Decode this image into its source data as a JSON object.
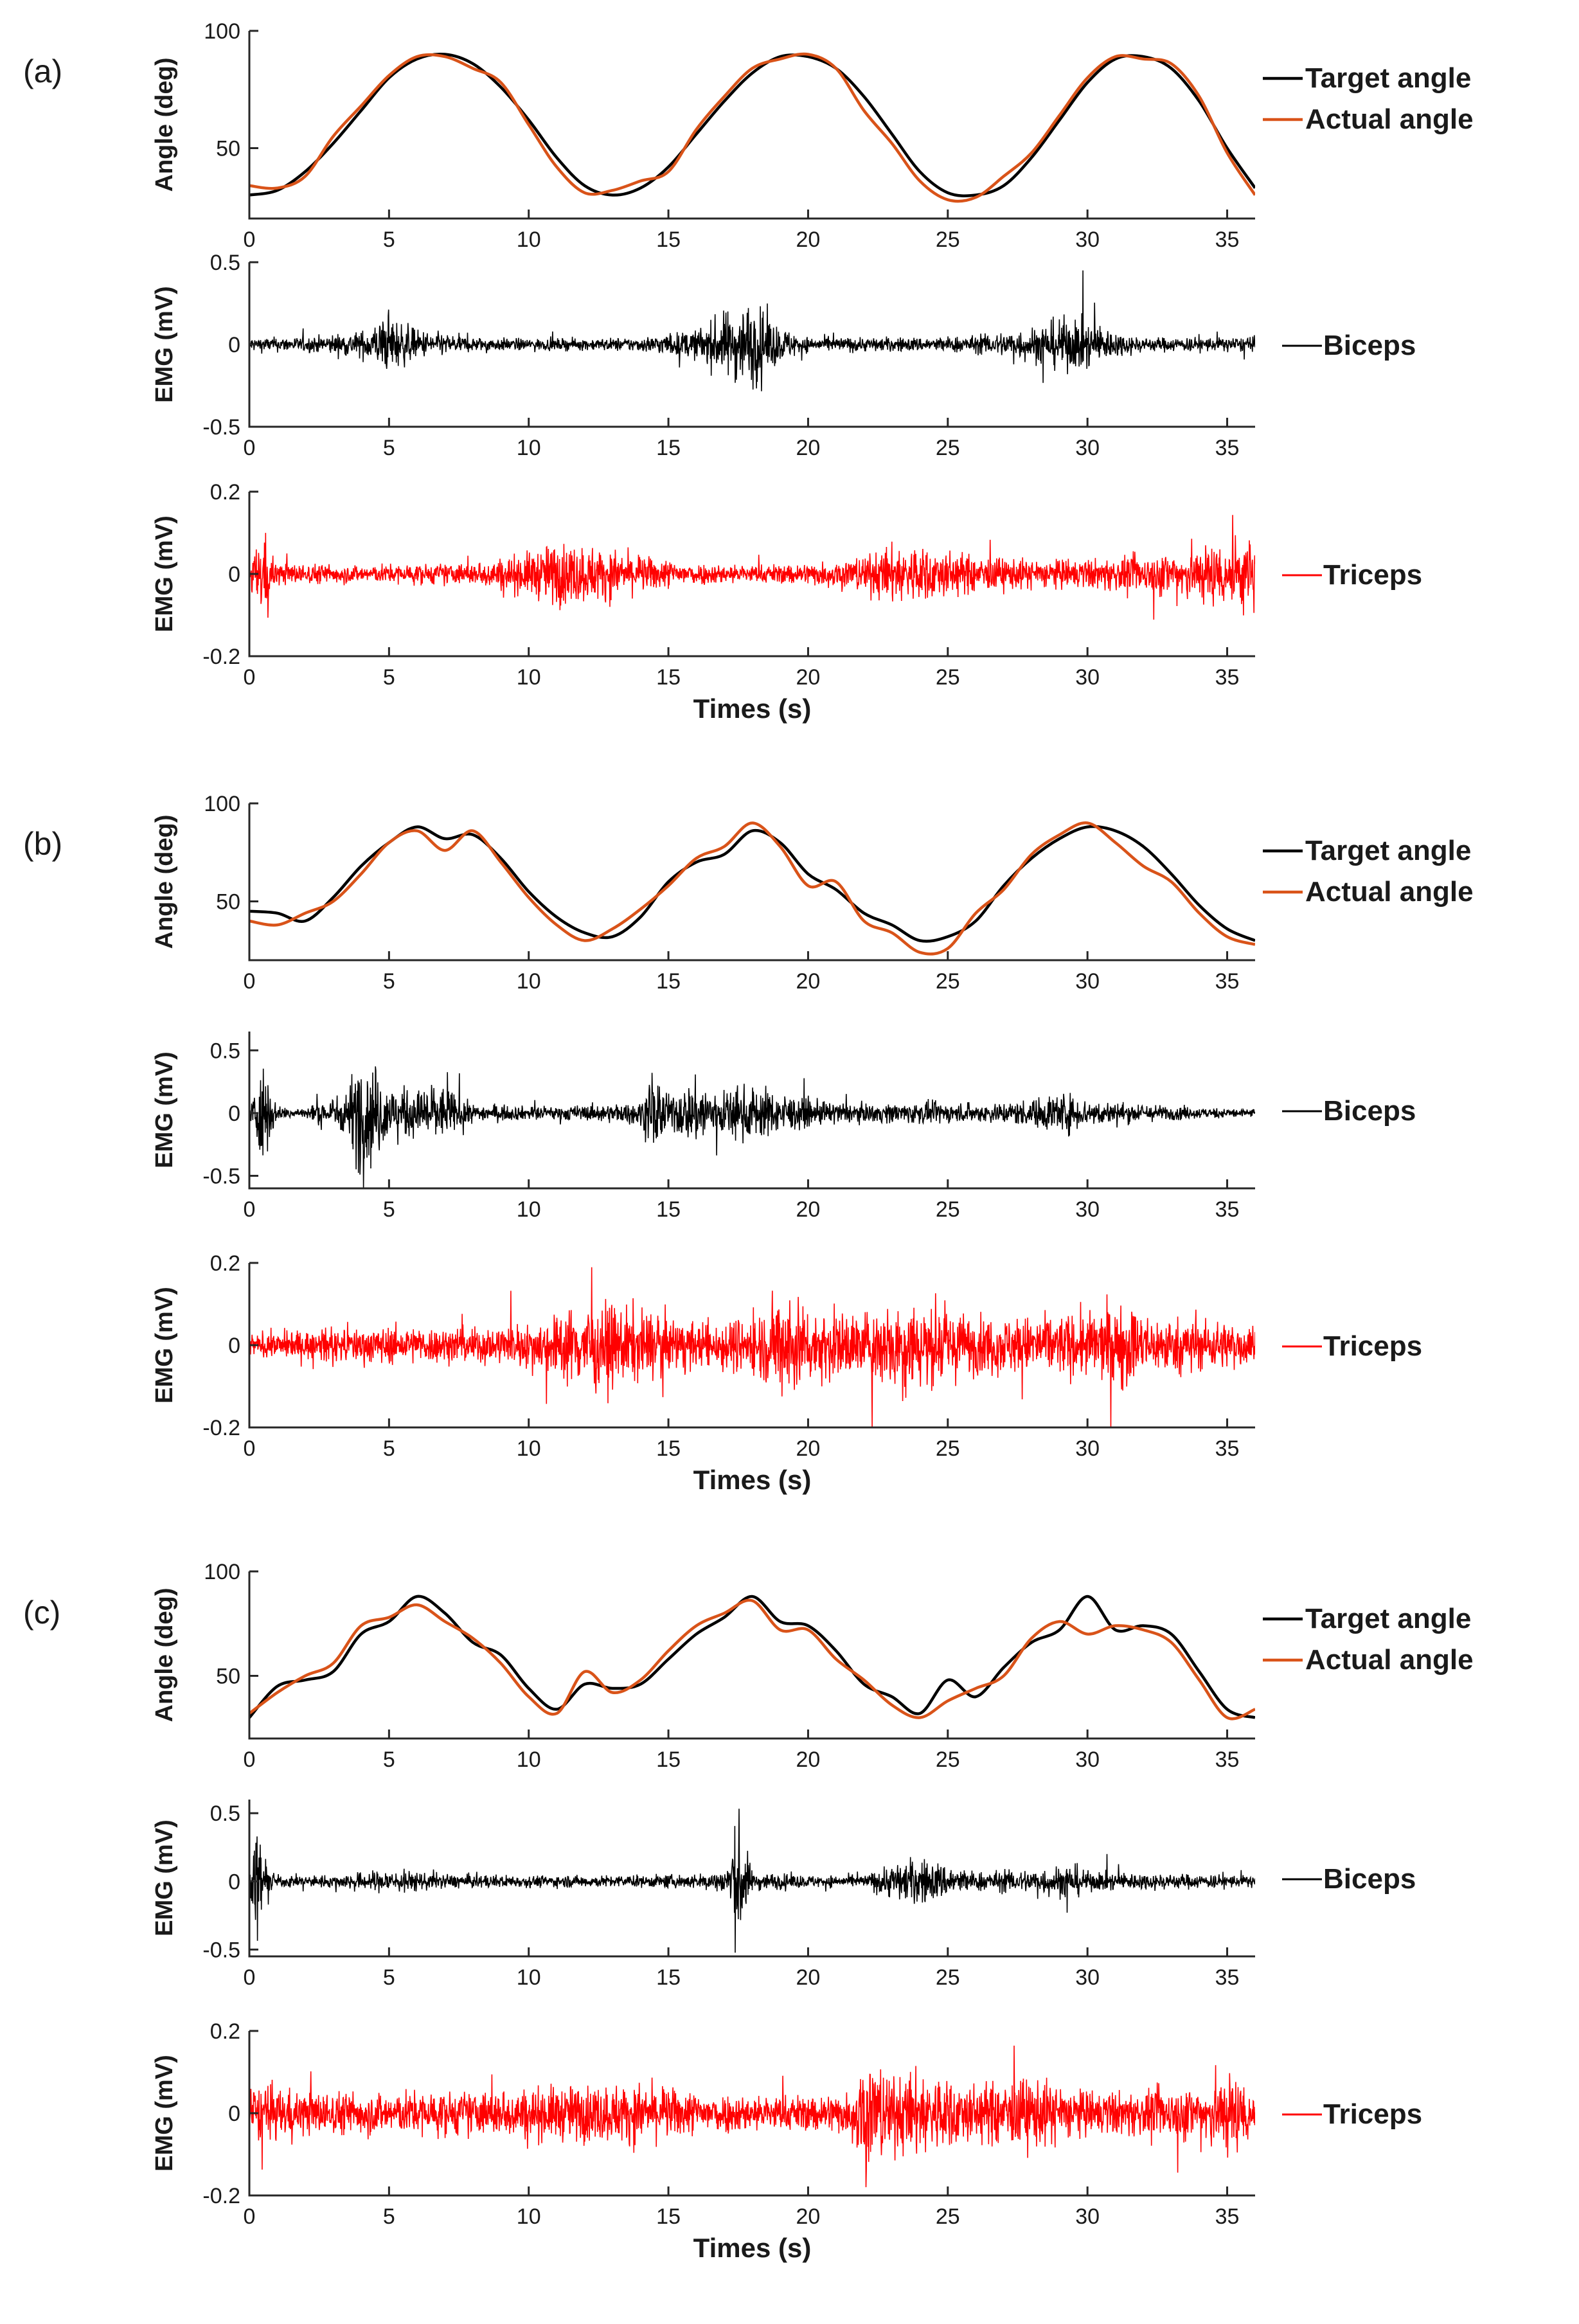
{
  "figure": {
    "xlabel": "Times (s)"
  },
  "chart_data": [
    {
      "type": "line",
      "panel": "(a)",
      "row": "angle",
      "ylabel": "Angle (deg)",
      "xlim": [
        0,
        36
      ],
      "ylim": [
        20,
        100
      ],
      "xticks": [
        0,
        5,
        10,
        15,
        20,
        25,
        30,
        35
      ],
      "yticks": [
        50,
        100
      ],
      "xlabel": "",
      "legend": [
        "Target angle",
        "Actual angle"
      ],
      "colors": [
        "#000000",
        "#d95319"
      ],
      "series": [
        {
          "name": "Target angle",
          "x": [
            0,
            1,
            2,
            3,
            4,
            5,
            6,
            7,
            8,
            9,
            10,
            11,
            12,
            13,
            14,
            15,
            16,
            17,
            18,
            19,
            20,
            21,
            22,
            23,
            24,
            25,
            26,
            27,
            28,
            29,
            30,
            31,
            32,
            33,
            34,
            35,
            36
          ],
          "values": [
            30,
            32,
            40,
            52,
            66,
            80,
            88,
            90,
            86,
            76,
            62,
            46,
            34,
            30,
            33,
            42,
            56,
            70,
            82,
            89,
            89,
            84,
            72,
            56,
            40,
            31,
            30,
            34,
            46,
            62,
            78,
            88,
            89,
            84,
            70,
            50,
            33
          ]
        },
        {
          "name": "Actual angle",
          "x": [
            0,
            1,
            2,
            3,
            4,
            5,
            6,
            7,
            8,
            9,
            10,
            11,
            12,
            13,
            14,
            15,
            16,
            17,
            18,
            19,
            20,
            21,
            22,
            23,
            24,
            25,
            26,
            27,
            28,
            29,
            30,
            31,
            32,
            33,
            34,
            35,
            36
          ],
          "values": [
            34,
            33,
            38,
            55,
            68,
            81,
            89,
            89,
            84,
            78,
            60,
            42,
            31,
            32,
            36,
            40,
            58,
            72,
            84,
            88,
            90,
            84,
            66,
            52,
            36,
            28,
            29,
            38,
            48,
            64,
            80,
            89,
            88,
            86,
            72,
            48,
            30
          ]
        }
      ]
    },
    {
      "type": "line",
      "panel": "(a)",
      "row": "biceps",
      "ylabel": "EMG (mV)",
      "xlim": [
        0,
        36
      ],
      "ylim": [
        -0.5,
        0.5
      ],
      "xticks": [
        0,
        5,
        10,
        15,
        20,
        25,
        30,
        35
      ],
      "yticks": [
        -0.5,
        0,
        0.5
      ],
      "legend": [
        "Biceps"
      ],
      "colors": [
        "#000000"
      ],
      "envelope_t": [
        0,
        2,
        4,
        5,
        6,
        8,
        10,
        12,
        14,
        16,
        17,
        18,
        19,
        20,
        22,
        24,
        26,
        28,
        29,
        30,
        31,
        32,
        34,
        36
      ],
      "envelope_amp": [
        0.05,
        0.05,
        0.09,
        0.2,
        0.1,
        0.05,
        0.04,
        0.04,
        0.05,
        0.1,
        0.22,
        0.3,
        0.12,
        0.05,
        0.05,
        0.05,
        0.06,
        0.12,
        0.18,
        0.17,
        0.09,
        0.05,
        0.05,
        0.05
      ]
    },
    {
      "type": "line",
      "panel": "(a)",
      "row": "triceps",
      "ylabel": "EMG (mV)",
      "xlim": [
        0,
        36
      ],
      "ylim": [
        -0.2,
        0.2
      ],
      "xticks": [
        0,
        5,
        10,
        15,
        20,
        25,
        30,
        35
      ],
      "yticks": [
        -0.2,
        0,
        0.2
      ],
      "xlabel": "Times (s)",
      "legend": [
        "Triceps"
      ],
      "colors": [
        "#ff0000"
      ],
      "envelope_t": [
        0,
        0.5,
        1,
        4,
        8,
        10,
        11,
        12,
        14,
        16,
        18,
        20,
        22,
        23,
        24,
        26,
        28,
        30,
        32,
        34,
        36
      ],
      "envelope_amp": [
        0.03,
        0.12,
        0.03,
        0.025,
        0.03,
        0.06,
        0.09,
        0.08,
        0.05,
        0.03,
        0.025,
        0.03,
        0.05,
        0.08,
        0.08,
        0.05,
        0.04,
        0.04,
        0.05,
        0.08,
        0.11
      ]
    },
    {
      "type": "line",
      "panel": "(b)",
      "row": "angle",
      "ylabel": "Angle (deg)",
      "xlim": [
        0,
        36
      ],
      "ylim": [
        20,
        100
      ],
      "xticks": [
        0,
        5,
        10,
        15,
        20,
        25,
        30,
        35
      ],
      "yticks": [
        50,
        100
      ],
      "xlabel": "",
      "legend": [
        "Target angle",
        "Actual angle"
      ],
      "colors": [
        "#000000",
        "#d95319"
      ],
      "series": [
        {
          "name": "Target angle",
          "x": [
            0,
            1,
            2,
            3,
            4,
            5,
            6,
            7,
            8,
            9,
            10,
            11,
            12,
            13,
            14,
            15,
            16,
            17,
            18,
            19,
            20,
            21,
            22,
            23,
            24,
            25,
            26,
            27,
            28,
            29,
            30,
            31,
            32,
            33,
            34,
            35,
            36
          ],
          "values": [
            45,
            44,
            40,
            52,
            68,
            80,
            88,
            82,
            84,
            72,
            55,
            42,
            34,
            32,
            42,
            60,
            70,
            74,
            86,
            80,
            64,
            56,
            44,
            38,
            30,
            32,
            40,
            58,
            72,
            82,
            88,
            86,
            78,
            64,
            48,
            36,
            30
          ]
        },
        {
          "name": "Actual angle",
          "x": [
            0,
            1,
            2,
            3,
            4,
            5,
            6,
            7,
            8,
            9,
            10,
            11,
            12,
            13,
            14,
            15,
            16,
            17,
            18,
            19,
            20,
            21,
            22,
            23,
            24,
            25,
            26,
            27,
            28,
            29,
            30,
            31,
            32,
            33,
            34,
            35,
            36
          ],
          "values": [
            40,
            38,
            44,
            50,
            64,
            80,
            86,
            76,
            86,
            70,
            52,
            38,
            30,
            36,
            46,
            58,
            72,
            78,
            90,
            78,
            58,
            60,
            40,
            34,
            24,
            26,
            44,
            56,
            74,
            84,
            90,
            80,
            68,
            60,
            44,
            32,
            28
          ]
        }
      ]
    },
    {
      "type": "line",
      "panel": "(b)",
      "row": "biceps",
      "ylabel": "EMG (mV)",
      "xlim": [
        0,
        36
      ],
      "ylim": [
        -0.6,
        0.65
      ],
      "xticks": [
        0,
        5,
        10,
        15,
        20,
        25,
        30,
        35
      ],
      "yticks": [
        -0.5,
        0,
        0.5
      ],
      "legend": [
        "Biceps"
      ],
      "colors": [
        "#000000"
      ],
      "envelope_t": [
        0,
        0.5,
        1,
        2,
        3.5,
        4,
        5,
        6,
        6.5,
        8,
        10,
        12,
        14,
        14.5,
        15,
        16,
        17,
        18,
        20,
        22,
        24,
        26,
        28,
        29,
        30,
        32,
        34,
        36
      ],
      "envelope_amp": [
        0.05,
        0.45,
        0.06,
        0.05,
        0.2,
        0.6,
        0.25,
        0.2,
        0.3,
        0.08,
        0.06,
        0.07,
        0.1,
        0.4,
        0.15,
        0.3,
        0.2,
        0.25,
        0.12,
        0.08,
        0.1,
        0.08,
        0.12,
        0.2,
        0.12,
        0.08,
        0.05,
        0.04
      ]
    },
    {
      "type": "line",
      "panel": "(b)",
      "row": "triceps",
      "ylabel": "EMG (mV)",
      "xlim": [
        0,
        36
      ],
      "ylim": [
        -0.2,
        0.2
      ],
      "xticks": [
        0,
        5,
        10,
        15,
        20,
        25,
        30,
        35
      ],
      "yticks": [
        -0.2,
        0,
        0.2
      ],
      "xlabel": "Times (s)",
      "legend": [
        "Triceps"
      ],
      "colors": [
        "#ff0000"
      ],
      "envelope_t": [
        0,
        2,
        4,
        6,
        8,
        10,
        12,
        14,
        16,
        18,
        19.5,
        20,
        22,
        23.5,
        24,
        26,
        28,
        30,
        31.5,
        32,
        34,
        36
      ],
      "envelope_amp": [
        0.03,
        0.04,
        0.05,
        0.05,
        0.05,
        0.06,
        0.12,
        0.1,
        0.06,
        0.08,
        0.16,
        0.1,
        0.09,
        0.14,
        0.12,
        0.08,
        0.08,
        0.09,
        0.12,
        0.08,
        0.07,
        0.06
      ]
    },
    {
      "type": "line",
      "panel": "(c)",
      "row": "angle",
      "ylabel": "Angle (deg)",
      "xlim": [
        0,
        36
      ],
      "ylim": [
        20,
        100
      ],
      "xticks": [
        0,
        5,
        10,
        15,
        20,
        25,
        30,
        35
      ],
      "yticks": [
        50,
        100
      ],
      "xlabel": "",
      "legend": [
        "Target angle",
        "Actual angle"
      ],
      "colors": [
        "#000000",
        "#d95319"
      ],
      "series": [
        {
          "name": "Target angle",
          "x": [
            0,
            1,
            2,
            3,
            4,
            5,
            6,
            7,
            8,
            9,
            10,
            11,
            12,
            13,
            14,
            15,
            16,
            17,
            18,
            19,
            20,
            21,
            22,
            23,
            24,
            25,
            26,
            27,
            28,
            29,
            30,
            31,
            32,
            33,
            34,
            35,
            36
          ],
          "values": [
            30,
            45,
            48,
            52,
            70,
            76,
            88,
            80,
            66,
            60,
            44,
            34,
            46,
            44,
            46,
            58,
            70,
            78,
            88,
            76,
            74,
            62,
            46,
            40,
            32,
            48,
            40,
            54,
            66,
            72,
            88,
            72,
            74,
            70,
            52,
            34,
            30
          ]
        },
        {
          "name": "Actual angle",
          "x": [
            0,
            1,
            2,
            3,
            4,
            5,
            6,
            7,
            8,
            9,
            10,
            11,
            12,
            13,
            14,
            15,
            16,
            17,
            18,
            19,
            20,
            21,
            22,
            23,
            24,
            25,
            26,
            27,
            28,
            29,
            30,
            31,
            32,
            33,
            34,
            35,
            36
          ],
          "values": [
            32,
            42,
            50,
            56,
            74,
            78,
            84,
            76,
            68,
            56,
            40,
            32,
            52,
            42,
            48,
            62,
            74,
            80,
            86,
            72,
            72,
            58,
            48,
            36,
            30,
            38,
            44,
            50,
            68,
            76,
            70,
            74,
            72,
            66,
            48,
            30,
            34
          ]
        }
      ]
    },
    {
      "type": "line",
      "panel": "(c)",
      "row": "biceps",
      "ylabel": "EMG (mV)",
      "xlim": [
        0,
        36
      ],
      "ylim": [
        -0.55,
        0.6
      ],
      "xticks": [
        0,
        5,
        10,
        15,
        20,
        25,
        30,
        35
      ],
      "yticks": [
        -0.5,
        0,
        0.5
      ],
      "legend": [
        "Biceps"
      ],
      "colors": [
        "#000000"
      ],
      "envelope_t": [
        0,
        0.3,
        0.6,
        1,
        3,
        5,
        7,
        10,
        12,
        14,
        16,
        17,
        17.5,
        18,
        20,
        22,
        23,
        24,
        26,
        28,
        29.5,
        30,
        32,
        34,
        36
      ],
      "envelope_amp": [
        0.05,
        0.5,
        0.12,
        0.05,
        0.05,
        0.1,
        0.06,
        0.05,
        0.05,
        0.05,
        0.06,
        0.1,
        0.55,
        0.08,
        0.05,
        0.05,
        0.15,
        0.2,
        0.08,
        0.1,
        0.15,
        0.08,
        0.07,
        0.06,
        0.05
      ]
    },
    {
      "type": "line",
      "panel": "(c)",
      "row": "triceps",
      "ylabel": "EMG (mV)",
      "xlim": [
        0,
        36
      ],
      "ylim": [
        -0.2,
        0.2
      ],
      "xticks": [
        0,
        5,
        10,
        15,
        20,
        25,
        30,
        35
      ],
      "yticks": [
        -0.2,
        0,
        0.2
      ],
      "xlabel": "Times (s)",
      "legend": [
        "Triceps"
      ],
      "colors": [
        "#ff0000"
      ],
      "envelope_t": [
        0,
        2,
        4,
        6,
        8,
        10,
        12,
        14,
        16,
        18,
        20,
        21.5,
        22,
        23,
        24,
        26,
        28,
        30,
        32,
        34,
        35,
        36
      ],
      "envelope_amp": [
        0.08,
        0.06,
        0.06,
        0.06,
        0.06,
        0.07,
        0.08,
        0.08,
        0.06,
        0.05,
        0.05,
        0.06,
        0.18,
        0.1,
        0.12,
        0.08,
        0.1,
        0.06,
        0.06,
        0.08,
        0.12,
        0.08
      ]
    }
  ],
  "panel_labels": [
    "(a)",
    "(b)",
    "(c)"
  ]
}
